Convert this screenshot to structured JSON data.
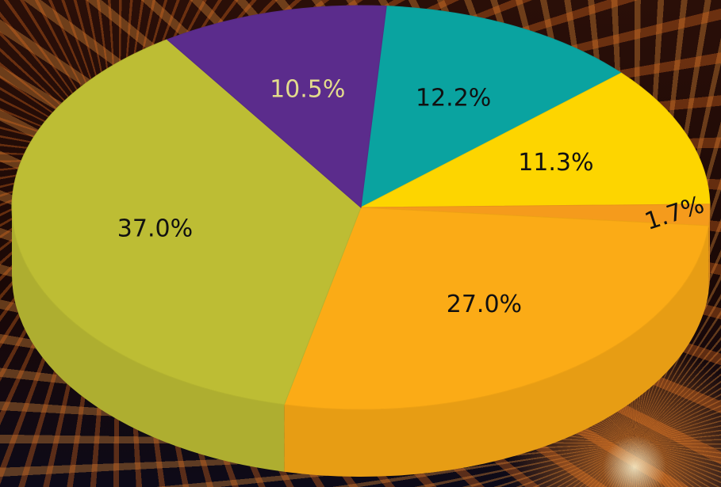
{
  "chart_data": {
    "type": "pie",
    "values": [
      12.2,
      11.3,
      1.7,
      27.0,
      37.0,
      10.5
    ],
    "value_labels": [
      "12.2%",
      "11.3%",
      "1.7%",
      "27.0%",
      "37.0%",
      "10.5%"
    ],
    "colors": [
      "#0aa3a0",
      "#fdd500",
      "#f59b1c",
      "#fbab16",
      "#bdbd34",
      "#5b2c8c"
    ]
  }
}
